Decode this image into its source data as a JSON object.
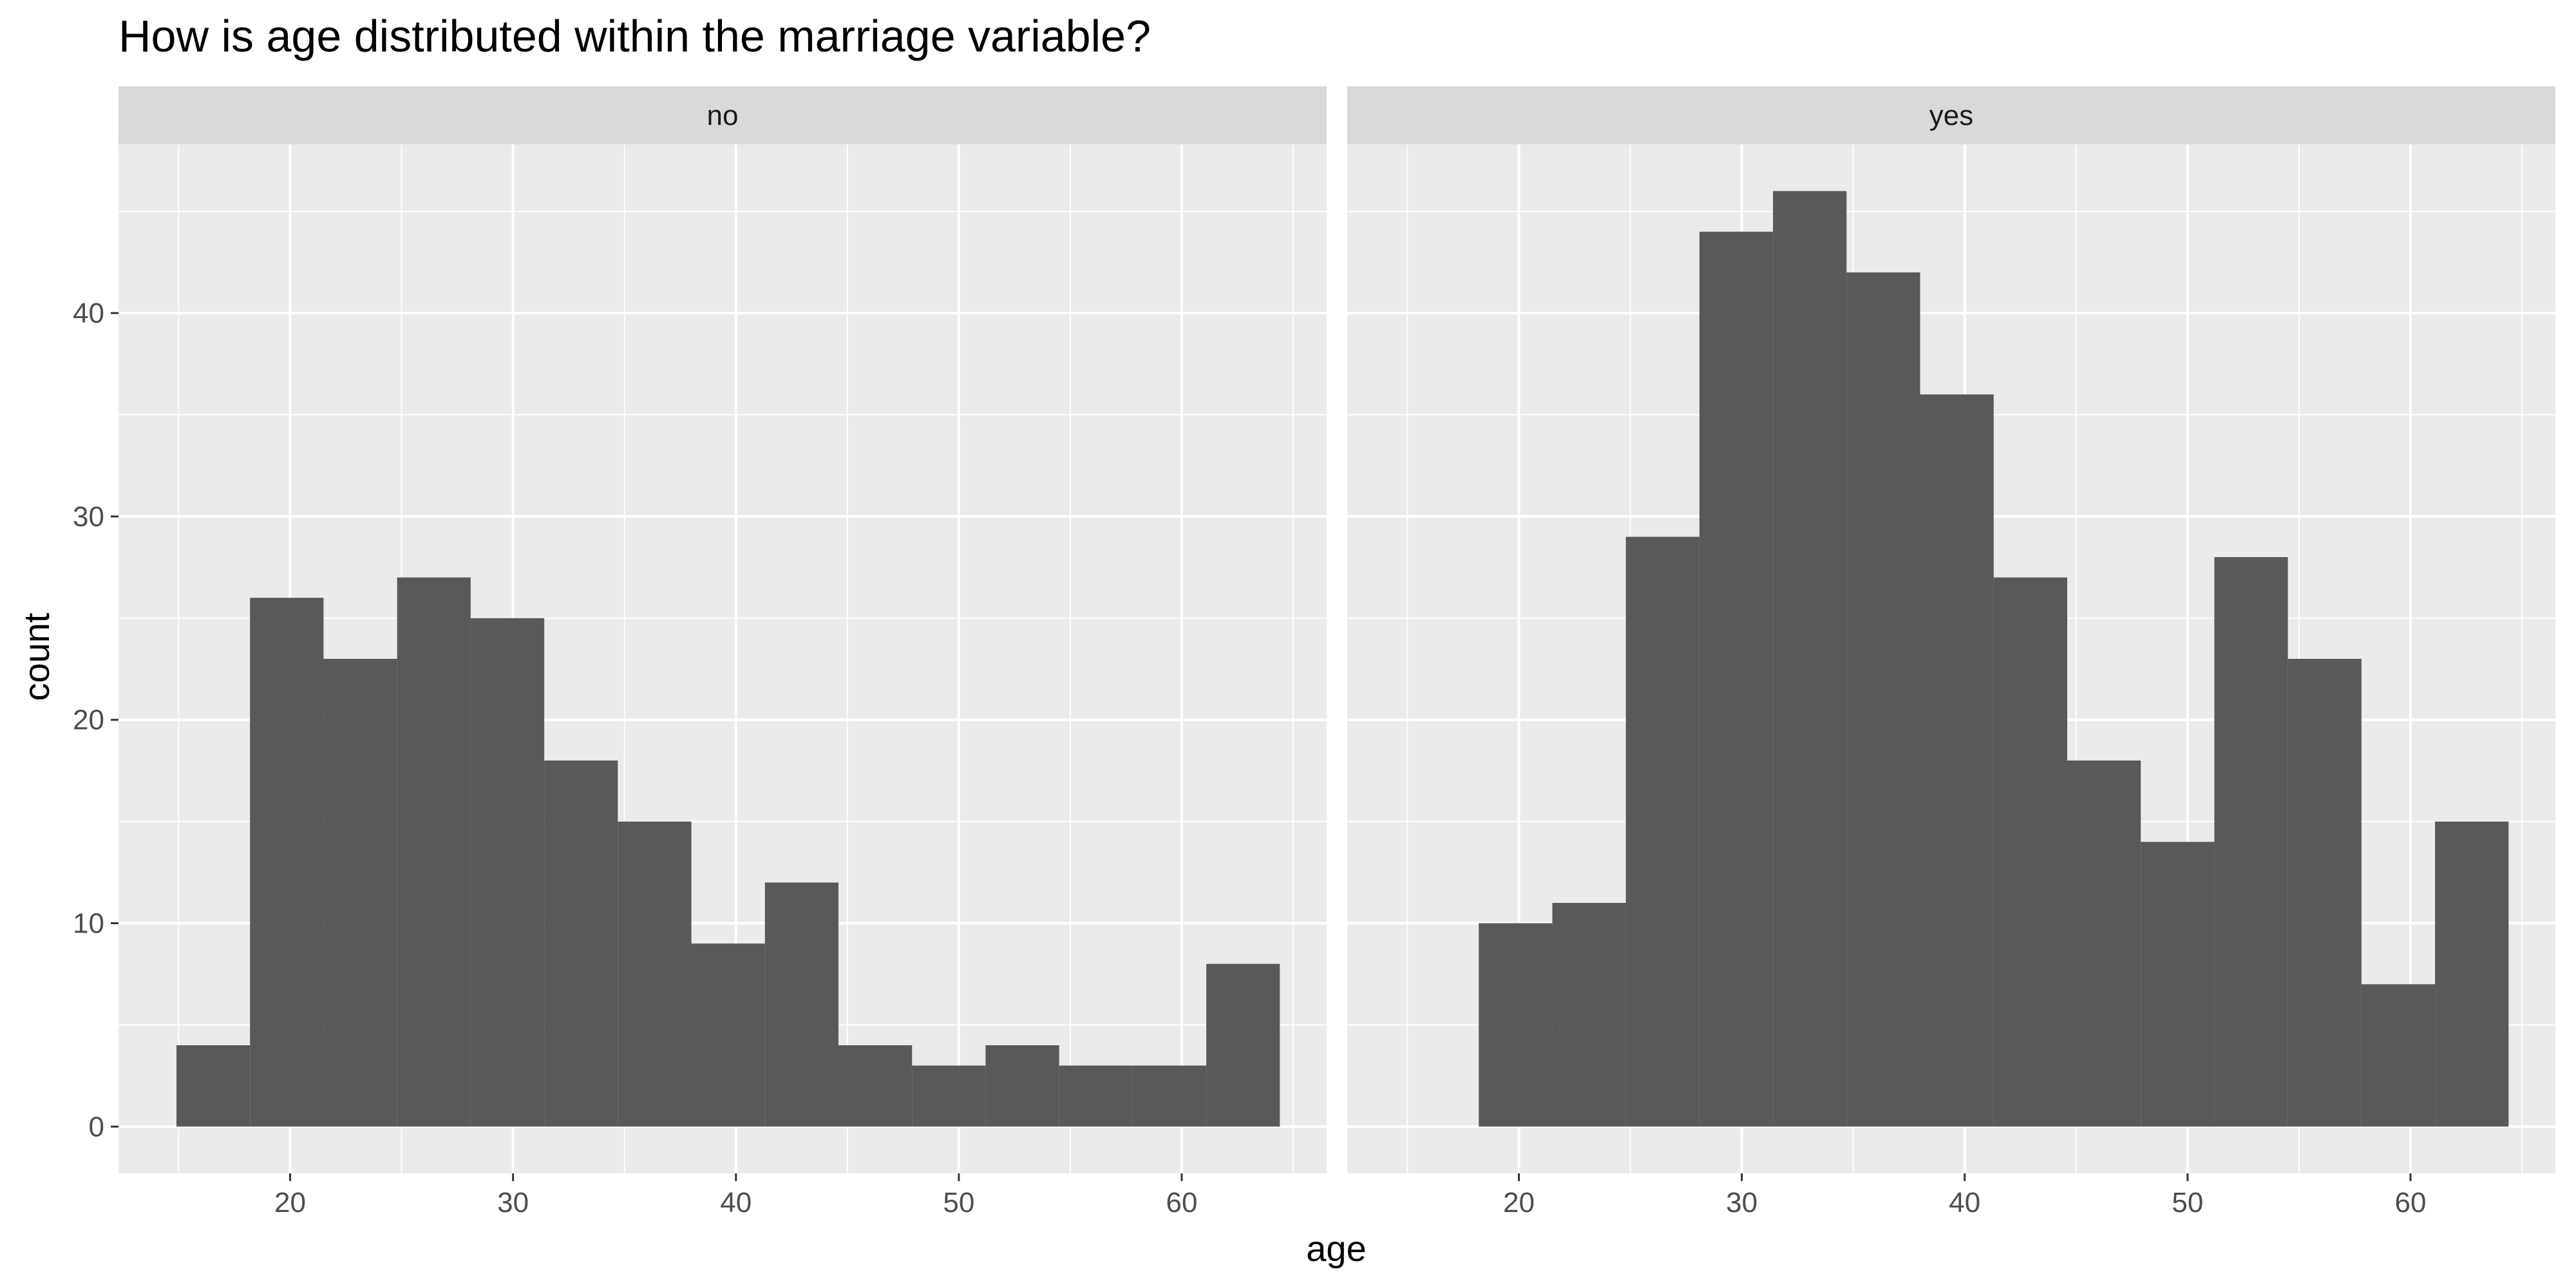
{
  "chart_data": {
    "type": "bar",
    "title": "How is age distributed within the marriage variable?",
    "xlabel": "age",
    "ylabel": "count",
    "xlim": [
      12.3,
      66.5
    ],
    "ylim": [
      -2.3,
      48.3
    ],
    "x_ticks": [
      20,
      30,
      40,
      50,
      60
    ],
    "y_ticks": [
      0,
      10,
      20,
      30,
      40
    ],
    "grid": true,
    "legend": "none",
    "colors": {
      "bar": "#595959",
      "panel_bg": "#ebebeb",
      "strip_bg": "#d9d9d9",
      "grid": "#ffffff"
    },
    "bin_edges": [
      14.9,
      18.2,
      21.5,
      24.8,
      28.1,
      31.4,
      34.7,
      38.0,
      41.3,
      44.6,
      47.9,
      51.2,
      54.5,
      57.8,
      61.1,
      64.4
    ],
    "facets": [
      {
        "name": "no",
        "values": [
          4,
          26,
          23,
          27,
          25,
          18,
          15,
          9,
          12,
          4,
          3,
          4,
          3,
          3,
          8
        ]
      },
      {
        "name": "yes",
        "values": [
          0,
          10,
          11,
          29,
          44,
          46,
          42,
          36,
          27,
          18,
          14,
          28,
          23,
          7,
          15
        ]
      }
    ]
  }
}
